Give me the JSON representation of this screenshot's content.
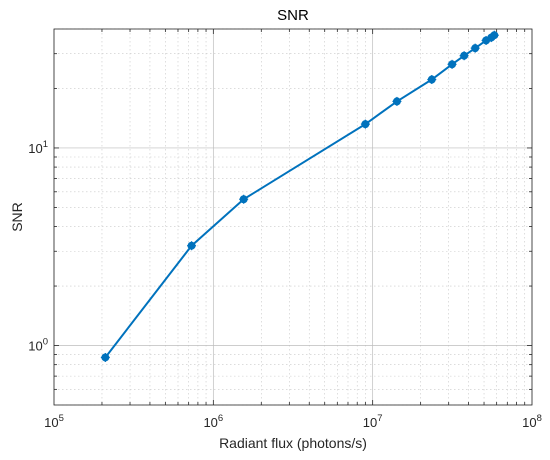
{
  "chart_data": {
    "type": "line",
    "title": "SNR",
    "xlabel": "Radiant flux (photons/s)",
    "ylabel": "SNR",
    "xscale": "log",
    "yscale": "log",
    "xlim": [
      100000,
      100000000
    ],
    "ylim": [
      0.5,
      40
    ],
    "x_ticks": [
      100000,
      1000000,
      10000000,
      100000000
    ],
    "x_tick_labels": [
      {
        "base": "10",
        "exp": "5"
      },
      {
        "base": "10",
        "exp": "6"
      },
      {
        "base": "10",
        "exp": "7"
      },
      {
        "base": "10",
        "exp": "8"
      }
    ],
    "y_ticks": [
      1,
      10
    ],
    "y_tick_labels": [
      {
        "base": "10",
        "exp": "0"
      },
      {
        "base": "10",
        "exp": "1"
      }
    ],
    "grid": "major and minor, dotted",
    "color": "#0072BD",
    "series": [
      {
        "x": [
          210000,
          730000,
          1550000,
          9000000,
          14200000,
          23500000,
          31500000,
          37500000,
          44000000,
          51500000,
          55500000,
          58000000
        ],
        "y": [
          0.87,
          3.2,
          5.5,
          13.2,
          17.2,
          22.2,
          26.5,
          29.3,
          32.0,
          35.0,
          36.2,
          37.2
        ]
      }
    ]
  }
}
